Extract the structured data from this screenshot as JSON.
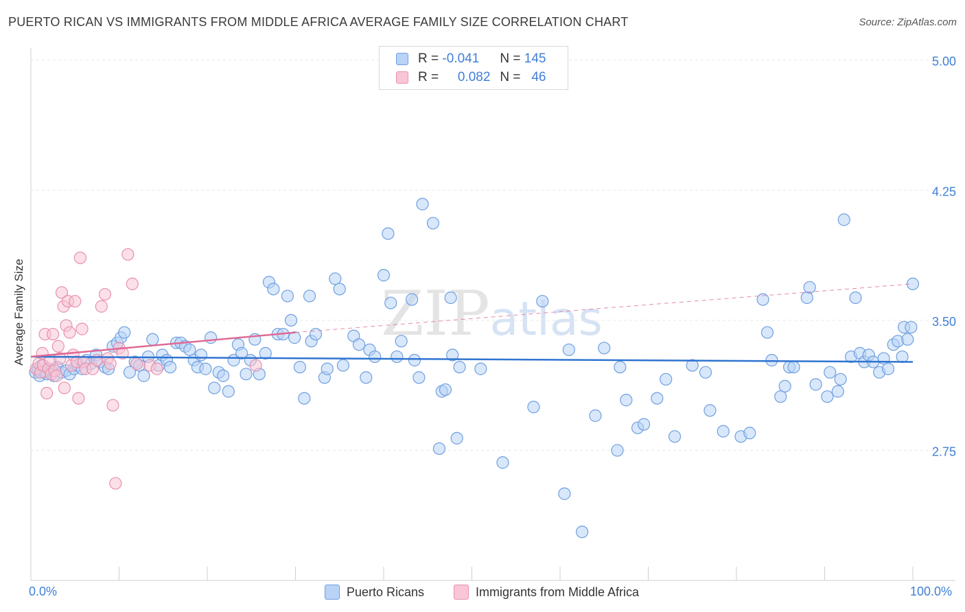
{
  "header": {
    "title": "PUERTO RICAN VS IMMIGRANTS FROM MIDDLE AFRICA AVERAGE FAMILY SIZE CORRELATION CHART",
    "source": "Source: ZipAtlas.com"
  },
  "watermark": {
    "part1": "ZIP",
    "part2": "atlas"
  },
  "legend_top": {
    "rows": [
      {
        "r_label": "R =",
        "r_value": "-0.041",
        "n_label": "N =",
        "n_value": "145"
      },
      {
        "r_label": "R =",
        "r_value": "0.082",
        "n_label": "N =",
        "n_value": "46"
      }
    ]
  },
  "colors": {
    "blue_fill": "#b8d3f5",
    "blue_stroke": "#6f9fe0",
    "blue_line": "#2f74d0",
    "pink_fill": "#f8c6d6",
    "pink_stroke": "#e890ae",
    "pink_line": "#e06a95",
    "tick_text": "#3f7fd6",
    "grid": "#e6e6e6"
  },
  "chart_data": {
    "type": "scatter",
    "title": "PUERTO RICAN VS IMMIGRANTS FROM MIDDLE AFRICA AVERAGE FAMILY SIZE CORRELATION CHART",
    "xlabel": "",
    "ylabel": "Average Family Size",
    "x_tick_labels": [
      "0.0%",
      "100.0%"
    ],
    "y_ticks": [
      2.75,
      3.5,
      4.25,
      5.0
    ],
    "y_tick_labels": [
      "2.75",
      "3.50",
      "4.25",
      "5.00"
    ],
    "xlim": [
      0,
      100
    ],
    "ylim": [
      2.0,
      5.07
    ],
    "grid": true,
    "legend_position": "bottom",
    "series": [
      {
        "name": "Puerto Ricans",
        "r": -0.041,
        "n": 145,
        "trend": {
          "x": [
            0,
            100
          ],
          "y": [
            3.29,
            3.26
          ]
        },
        "points": [
          [
            0.5,
            3.2
          ],
          [
            0.8,
            3.22
          ],
          [
            1.0,
            3.18
          ],
          [
            1.2,
            3.24
          ],
          [
            1.5,
            3.2
          ],
          [
            1.8,
            3.19
          ],
          [
            2.0,
            3.22
          ],
          [
            2.3,
            3.21
          ],
          [
            2.6,
            3.18
          ],
          [
            3.0,
            3.23
          ],
          [
            3.5,
            3.2
          ],
          [
            4.0,
            3.21
          ],
          [
            4.4,
            3.19
          ],
          [
            4.9,
            3.22
          ],
          [
            5.3,
            3.24
          ],
          [
            5.8,
            3.22
          ],
          [
            6.3,
            3.27
          ],
          [
            6.8,
            3.25
          ],
          [
            7.4,
            3.3
          ],
          [
            7.8,
            3.26
          ],
          [
            8.4,
            3.23
          ],
          [
            8.8,
            3.22
          ],
          [
            9.3,
            3.35
          ],
          [
            9.8,
            3.37
          ],
          [
            10.2,
            3.4
          ],
          [
            10.6,
            3.43
          ],
          [
            11.2,
            3.2
          ],
          [
            11.8,
            3.26
          ],
          [
            12.3,
            3.24
          ],
          [
            12.8,
            3.18
          ],
          [
            13.3,
            3.29
          ],
          [
            13.8,
            3.39
          ],
          [
            14.5,
            3.24
          ],
          [
            14.9,
            3.3
          ],
          [
            15.4,
            3.27
          ],
          [
            15.8,
            3.23
          ],
          [
            16.5,
            3.37
          ],
          [
            17.0,
            3.37
          ],
          [
            17.5,
            3.35
          ],
          [
            18.0,
            3.33
          ],
          [
            18.5,
            3.27
          ],
          [
            18.9,
            3.23
          ],
          [
            19.3,
            3.3
          ],
          [
            19.8,
            3.22
          ],
          [
            20.4,
            3.4
          ],
          [
            20.8,
            3.11
          ],
          [
            21.3,
            3.2
          ],
          [
            21.8,
            3.18
          ],
          [
            22.4,
            3.09
          ],
          [
            23.0,
            3.27
          ],
          [
            23.5,
            3.36
          ],
          [
            23.9,
            3.31
          ],
          [
            24.4,
            3.19
          ],
          [
            24.9,
            3.27
          ],
          [
            25.4,
            3.39
          ],
          [
            25.9,
            3.19
          ],
          [
            26.6,
            3.31
          ],
          [
            27.0,
            3.72
          ],
          [
            27.5,
            3.68
          ],
          [
            28.0,
            3.42
          ],
          [
            28.6,
            3.42
          ],
          [
            29.1,
            3.64
          ],
          [
            29.5,
            3.5
          ],
          [
            29.9,
            3.4
          ],
          [
            30.5,
            3.23
          ],
          [
            31.0,
            3.05
          ],
          [
            31.6,
            3.64
          ],
          [
            31.8,
            3.38
          ],
          [
            32.3,
            3.42
          ],
          [
            33.3,
            3.17
          ],
          [
            33.6,
            3.22
          ],
          [
            34.5,
            3.74
          ],
          [
            35.0,
            3.68
          ],
          [
            35.4,
            3.24
          ],
          [
            36.6,
            3.41
          ],
          [
            37.2,
            3.36
          ],
          [
            38.0,
            3.17
          ],
          [
            38.4,
            3.33
          ],
          [
            39.0,
            3.29
          ],
          [
            40.0,
            3.76
          ],
          [
            40.5,
            4.0
          ],
          [
            40.8,
            3.6
          ],
          [
            41.5,
            3.29
          ],
          [
            42.0,
            3.38
          ],
          [
            43.2,
            3.62
          ],
          [
            43.5,
            3.27
          ],
          [
            44.0,
            3.17
          ],
          [
            44.4,
            4.17
          ],
          [
            45.6,
            4.06
          ],
          [
            46.3,
            2.76
          ],
          [
            46.6,
            3.09
          ],
          [
            47.0,
            3.1
          ],
          [
            47.6,
            3.63
          ],
          [
            47.8,
            3.3
          ],
          [
            48.3,
            2.82
          ],
          [
            48.6,
            3.23
          ],
          [
            51.0,
            3.22
          ],
          [
            53.5,
            2.68
          ],
          [
            57.0,
            3.0
          ],
          [
            58.0,
            3.61
          ],
          [
            60.5,
            2.5
          ],
          [
            61.0,
            3.33
          ],
          [
            62.5,
            2.28
          ],
          [
            65.0,
            3.34
          ],
          [
            66.5,
            2.75
          ],
          [
            66.8,
            3.23
          ],
          [
            67.5,
            3.04
          ],
          [
            68.8,
            2.88
          ],
          [
            69.5,
            2.9
          ],
          [
            71.0,
            3.05
          ],
          [
            72.0,
            3.16
          ],
          [
            73.0,
            2.83
          ],
          [
            75.0,
            3.24
          ],
          [
            76.5,
            3.2
          ],
          [
            78.5,
            2.86
          ],
          [
            80.5,
            2.83
          ],
          [
            81.5,
            2.85
          ],
          [
            83.0,
            3.62
          ],
          [
            83.5,
            3.43
          ],
          [
            84.0,
            3.27
          ],
          [
            85.0,
            3.06
          ],
          [
            85.5,
            3.12
          ],
          [
            86.0,
            3.23
          ],
          [
            86.5,
            3.23
          ],
          [
            88.0,
            3.63
          ],
          [
            88.3,
            3.69
          ],
          [
            89.0,
            3.13
          ],
          [
            90.3,
            3.06
          ],
          [
            90.6,
            3.2
          ],
          [
            91.5,
            3.09
          ],
          [
            91.8,
            3.16
          ],
          [
            92.2,
            4.08
          ],
          [
            93.0,
            3.29
          ],
          [
            93.5,
            3.63
          ],
          [
            94.0,
            3.31
          ],
          [
            94.5,
            3.26
          ],
          [
            95.0,
            3.3
          ],
          [
            95.5,
            3.26
          ],
          [
            96.2,
            3.2
          ],
          [
            96.7,
            3.28
          ],
          [
            97.2,
            3.22
          ],
          [
            97.8,
            3.36
          ],
          [
            98.3,
            3.38
          ],
          [
            98.8,
            3.29
          ],
          [
            99.0,
            3.46
          ],
          [
            99.4,
            3.39
          ],
          [
            99.8,
            3.46
          ],
          [
            100.0,
            3.71
          ],
          [
            77.0,
            2.98
          ],
          [
            64.0,
            2.95
          ]
        ]
      },
      {
        "name": "Immigrants from Middle Africa",
        "r": 0.082,
        "n": 46,
        "trend": {
          "x": [
            0,
            30
          ],
          "y": [
            3.29,
            3.43
          ]
        },
        "trend_extended": {
          "x": [
            30,
            100
          ],
          "y": [
            3.43,
            3.71
          ]
        },
        "points": [
          [
            0.6,
            3.22
          ],
          [
            0.9,
            3.25
          ],
          [
            1.1,
            3.2
          ],
          [
            1.3,
            3.31
          ],
          [
            1.4,
            3.24
          ],
          [
            1.6,
            3.42
          ],
          [
            1.8,
            3.08
          ],
          [
            2.0,
            3.22
          ],
          [
            2.2,
            3.27
          ],
          [
            2.3,
            3.19
          ],
          [
            2.5,
            3.42
          ],
          [
            2.7,
            3.21
          ],
          [
            2.9,
            3.18
          ],
          [
            3.1,
            3.35
          ],
          [
            3.3,
            3.28
          ],
          [
            3.5,
            3.66
          ],
          [
            3.7,
            3.58
          ],
          [
            3.8,
            3.11
          ],
          [
            4.0,
            3.47
          ],
          [
            4.2,
            3.61
          ],
          [
            4.4,
            3.43
          ],
          [
            4.6,
            3.24
          ],
          [
            4.8,
            3.3
          ],
          [
            5.0,
            3.61
          ],
          [
            5.2,
            3.26
          ],
          [
            5.4,
            3.05
          ],
          [
            5.6,
            3.86
          ],
          [
            5.8,
            3.45
          ],
          [
            6.0,
            3.26
          ],
          [
            6.2,
            3.22
          ],
          [
            7.0,
            3.22
          ],
          [
            7.5,
            3.27
          ],
          [
            8.0,
            3.58
          ],
          [
            8.4,
            3.65
          ],
          [
            8.7,
            3.28
          ],
          [
            9.0,
            3.25
          ],
          [
            9.3,
            3.01
          ],
          [
            9.6,
            2.56
          ],
          [
            10.0,
            3.34
          ],
          [
            10.4,
            3.31
          ],
          [
            11.0,
            3.88
          ],
          [
            11.5,
            3.71
          ],
          [
            12.0,
            3.25
          ],
          [
            13.5,
            3.24
          ],
          [
            14.3,
            3.22
          ],
          [
            25.5,
            3.24
          ]
        ]
      }
    ]
  },
  "legend_bottom": {
    "items": [
      {
        "label": "Puerto Ricans"
      },
      {
        "label": "Immigrants from Middle Africa"
      }
    ]
  }
}
